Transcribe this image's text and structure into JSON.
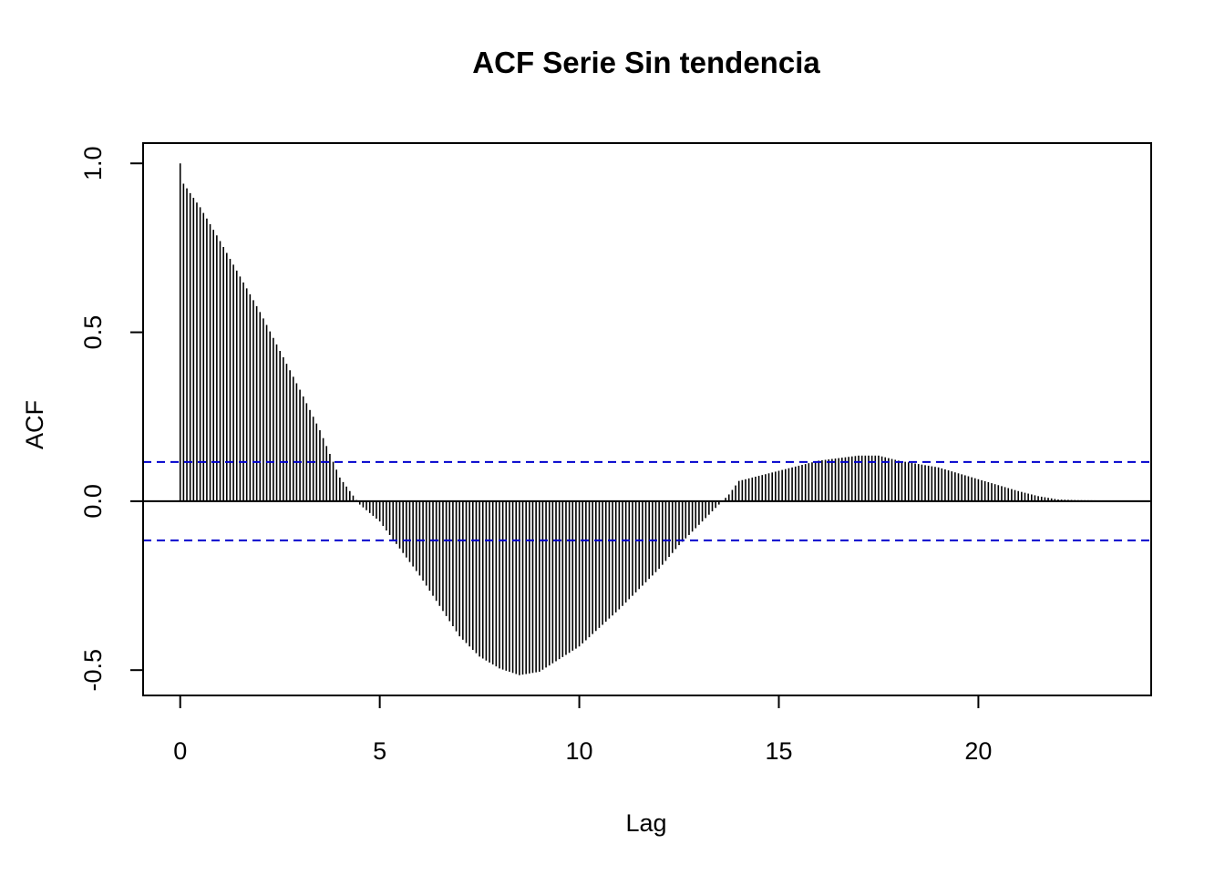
{
  "chart_data": {
    "type": "bar",
    "title": "ACF Serie Sin tendencia",
    "xlabel": "Lag",
    "ylabel": "ACF",
    "xlim": [
      -0.93,
      24.33
    ],
    "ylim": [
      -0.575,
      1.06
    ],
    "xticks": [
      0,
      5,
      10,
      15,
      20
    ],
    "yticks": [
      -0.5,
      0.0,
      0.5,
      1.0
    ],
    "xtick_labels": [
      "0",
      "5",
      "10",
      "15",
      "20"
    ],
    "ytick_labels": [
      "-0.5",
      "0.0",
      "0.5",
      "1.0"
    ],
    "lag_step": 0.0833333,
    "max_lag": 23.25,
    "confidence_limit": 0.116,
    "confidence_color": "#0000cd",
    "bar_color": "#000000",
    "acf_profile": [
      [
        0,
        1.0
      ],
      [
        0.083,
        0.94
      ],
      [
        0.5,
        0.87
      ],
      [
        1.0,
        0.77
      ],
      [
        2.0,
        0.56
      ],
      [
        3.0,
        0.33
      ],
      [
        3.5,
        0.21
      ],
      [
        4.0,
        0.07
      ],
      [
        4.5,
        -0.01
      ],
      [
        5.0,
        -0.06
      ],
      [
        6.0,
        -0.22
      ],
      [
        7.0,
        -0.4
      ],
      [
        7.5,
        -0.46
      ],
      [
        8.0,
        -0.495
      ],
      [
        8.5,
        -0.515
      ],
      [
        9.0,
        -0.505
      ],
      [
        10.0,
        -0.43
      ],
      [
        11.0,
        -0.32
      ],
      [
        12.0,
        -0.2
      ],
      [
        12.5,
        -0.13
      ],
      [
        13.0,
        -0.07
      ],
      [
        13.5,
        -0.01
      ],
      [
        13.75,
        0.02
      ],
      [
        14.0,
        0.06
      ],
      [
        15.0,
        0.09
      ],
      [
        16.0,
        0.12
      ],
      [
        17.0,
        0.135
      ],
      [
        17.5,
        0.135
      ],
      [
        18.0,
        0.12
      ],
      [
        19.0,
        0.1
      ],
      [
        20.0,
        0.065
      ],
      [
        21.0,
        0.03
      ],
      [
        21.5,
        0.015
      ],
      [
        22.0,
        0.005
      ],
      [
        22.5,
        0.003
      ],
      [
        23.25,
        0.002
      ]
    ]
  }
}
